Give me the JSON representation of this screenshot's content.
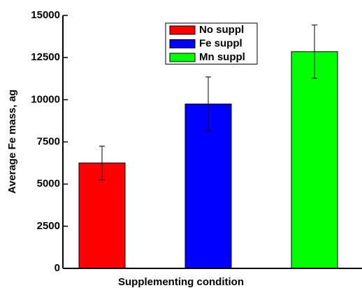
{
  "chart_data": {
    "type": "bar",
    "x_label": "Supplementing condition",
    "y_label": "Average Fe mass, ag",
    "categories": [
      null
    ],
    "series": [
      {
        "name": "No suppl",
        "color": "#ff0000",
        "values": [
          6250
        ],
        "errors": [
          1000
        ]
      },
      {
        "name": "Fe suppl",
        "color": "#0000ff",
        "values": [
          9750
        ],
        "errors": [
          1600
        ]
      },
      {
        "name": "Mn suppl",
        "color": "#00ff00",
        "values": [
          12850
        ],
        "errors": [
          1580
        ]
      }
    ],
    "ylim": [
      0,
      15000
    ],
    "yticks": [
      0,
      2500,
      5000,
      7500,
      10000,
      12500,
      15000
    ],
    "legend": "top"
  }
}
